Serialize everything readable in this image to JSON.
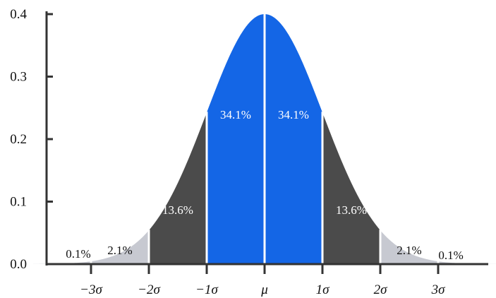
{
  "chart_data": {
    "type": "area",
    "title": "",
    "xlabel": "",
    "ylabel": "",
    "ylim": [
      0,
      0.4
    ],
    "xlim": [
      -4.0,
      4.0
    ],
    "y_ticks": [
      {
        "value": 0.0,
        "label": "0.0"
      },
      {
        "value": 0.1,
        "label": "0.1"
      },
      {
        "value": 0.2,
        "label": "0.2"
      },
      {
        "value": 0.3,
        "label": "0.3"
      },
      {
        "value": 0.4,
        "label": "0.4"
      }
    ],
    "x_ticks": [
      {
        "value": -3,
        "label": "−3σ"
      },
      {
        "value": -2,
        "label": "−2σ"
      },
      {
        "value": -1,
        "label": "−1σ"
      },
      {
        "value": 0,
        "label": "μ"
      },
      {
        "value": 1,
        "label": "1σ"
      },
      {
        "value": 2,
        "label": "2σ"
      },
      {
        "value": 3,
        "label": "3σ"
      }
    ],
    "curve": "standard normal density",
    "bands": [
      {
        "from": -1,
        "to": 0,
        "percent": "34.1%",
        "color": "#1466e6",
        "text_color": "#ffffff"
      },
      {
        "from": 0,
        "to": 1,
        "percent": "34.1%",
        "color": "#1466e6",
        "text_color": "#ffffff"
      },
      {
        "from": -2,
        "to": -1,
        "percent": "13.6%",
        "color": "#4b4b4b",
        "text_color": "#ffffff"
      },
      {
        "from": 1,
        "to": 2,
        "percent": "13.6%",
        "color": "#4b4b4b",
        "text_color": "#ffffff"
      },
      {
        "from": -3,
        "to": -2,
        "percent": "2.1%",
        "color": "#c7c9d1",
        "text_color": "#111111"
      },
      {
        "from": 2,
        "to": 3,
        "percent": "2.1%",
        "color": "#c7c9d1",
        "text_color": "#111111"
      },
      {
        "from": -4,
        "to": -3,
        "percent": "0.1%",
        "color": "#c7c9d1",
        "text_color": "#111111"
      },
      {
        "from": 3,
        "to": 4,
        "percent": "0.1%",
        "color": "#c7c9d1",
        "text_color": "#111111"
      }
    ],
    "grid": false,
    "legend": "none",
    "divider_color": "#ffffff",
    "axis_color": "#333333"
  }
}
